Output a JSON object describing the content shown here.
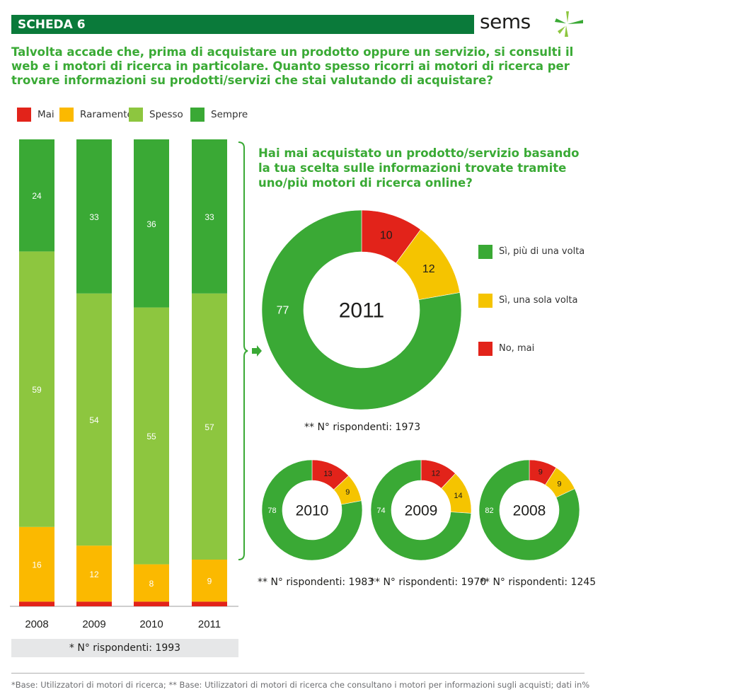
{
  "header": {
    "title": "SCHEDA 6",
    "logo_text": "sems"
  },
  "question": "Talvolta accade che, prima di acquistare un prodotto oppure un servizio, si consulti il web e i motori di ricerca in particolare. Quanto spesso ricorri ai motori di ricerca per trovare informazioni su prodotti/servizi che stai valutando di acquistare?",
  "colors": {
    "mai": "#e2231a",
    "raramente": "#fbb900",
    "spesso": "#8dc63f",
    "sempre": "#3aa935",
    "header": "#0a7a3a",
    "title_green": "#3aaa35",
    "ring_green": "#3aa935",
    "ring_yellow": "#f5c400",
    "ring_red": "#e2231a"
  },
  "legend": [
    {
      "label": "Mai",
      "color": "#e2231a"
    },
    {
      "label": "Raramente",
      "color": "#fbb900"
    },
    {
      "label": "Spesso",
      "color": "#8dc63f"
    },
    {
      "label": "Sempre",
      "color": "#3aa935"
    }
  ],
  "respondents_note": "* N° rispondenti: 1993",
  "side_question": "Hai mai acquistato un prodotto/servizio basando la tua scelta sulle informazioni trovate tramite uno/più motori di ricerca online?",
  "pie_legend": [
    {
      "label": "Sì, più di una volta",
      "color": "#3aa935"
    },
    {
      "label": "Sì, una sola volta",
      "color": "#f5c400"
    },
    {
      "label": "No, mai",
      "color": "#e2231a"
    }
  ],
  "footnote": "*Base: Utilizzatori di motori di ricerca; ** Base: Utilizzatori di motori di ricerca che consultano i motori per informazioni sugli acquisti; dati in%",
  "chart_data": [
    {
      "type": "bar",
      "stacked": true,
      "categories": [
        "2008",
        "2009",
        "2010",
        "2011"
      ],
      "series": [
        {
          "name": "Mai",
          "values": [
            1,
            1,
            1,
            1
          ]
        },
        {
          "name": "Raramente",
          "values": [
            16,
            12,
            8,
            9
          ]
        },
        {
          "name": "Spesso",
          "values": [
            59,
            54,
            55,
            57
          ]
        },
        {
          "name": "Sempre",
          "values": [
            24,
            33,
            36,
            33
          ]
        }
      ],
      "data_labels": {
        "Raramente": [
          "16",
          "12",
          "8",
          "9"
        ],
        "Spesso": [
          "59",
          "54",
          "55",
          "57"
        ],
        "Sempre": [
          "24",
          "33",
          "36",
          "33"
        ]
      },
      "ylim": [
        0,
        100
      ],
      "note": "* N° rispondenti: 1993"
    },
    {
      "type": "pie",
      "donut": true,
      "center_label": "2011",
      "slices": [
        {
          "name": "No, mai",
          "value": 10
        },
        {
          "name": "Sì, una sola volta",
          "value": 12
        },
        {
          "name": "Sì, più di una volta",
          "value": 77
        }
      ],
      "note": "** N° rispondenti: 1973"
    },
    {
      "type": "pie",
      "donut": true,
      "center_label": "2010",
      "slices": [
        {
          "name": "No, mai",
          "value": 13
        },
        {
          "name": "Sì, una sola volta",
          "value": 9
        },
        {
          "name": "Sì, più di una volta",
          "value": 78
        }
      ],
      "note": "** N° rispondenti: 1983"
    },
    {
      "type": "pie",
      "donut": true,
      "center_label": "2009",
      "slices": [
        {
          "name": "No, mai",
          "value": 12
        },
        {
          "name": "Sì, una sola volta",
          "value": 14
        },
        {
          "name": "Sì, più di una volta",
          "value": 74
        }
      ],
      "note": "** N° rispondenti: 1970"
    },
    {
      "type": "pie",
      "donut": true,
      "center_label": "2008",
      "slices": [
        {
          "name": "No, mai",
          "value": 9
        },
        {
          "name": "Sì, una sola volta",
          "value": 9
        },
        {
          "name": "Sì, più di una volta",
          "value": 82
        }
      ],
      "note": "** N° rispondenti: 1245"
    }
  ]
}
